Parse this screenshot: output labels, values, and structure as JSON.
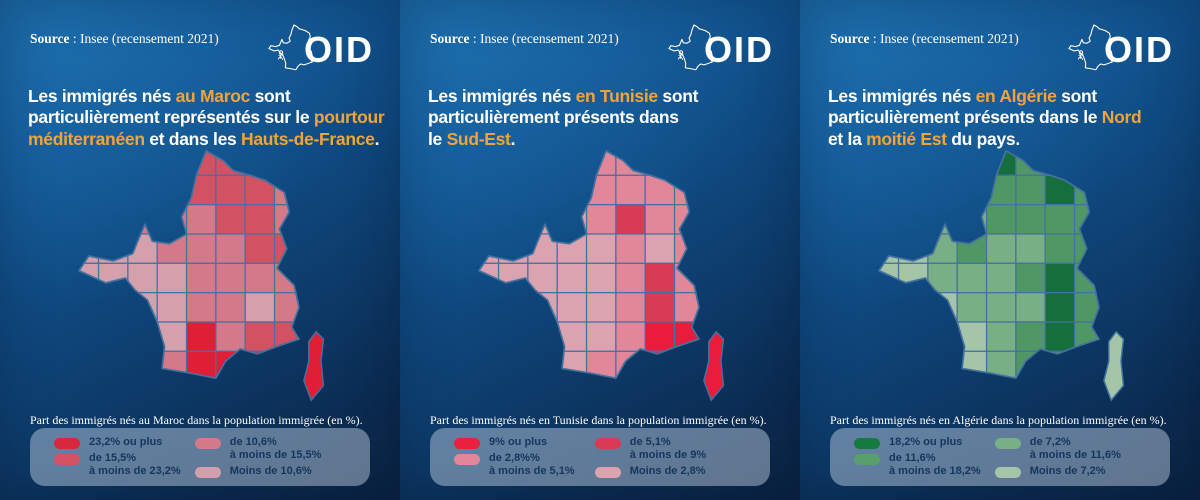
{
  "brand": {
    "logo_text": "OID"
  },
  "panels": [
    {
      "source": {
        "label": "Source",
        "rest": " : Insee (recensement 2021)"
      },
      "title_segments": [
        {
          "text": "Les immigrés nés ",
          "highlight": false
        },
        {
          "text": "au Maroc",
          "highlight": true
        },
        {
          "text": " sont",
          "highlight": false
        },
        {
          "br": true
        },
        {
          "text": "particulièrement représentés sur le ",
          "highlight": false
        },
        {
          "text": "pourtour méditerranéen",
          "highlight": true
        },
        {
          "text": " et dans les ",
          "highlight": false
        },
        {
          "text": "Hauts-de-France",
          "highlight": true
        },
        {
          "text": ".",
          "highlight": false
        }
      ],
      "caption": "Part des immigrés nés au Maroc dans la population immigrée (en %).",
      "legend": {
        "left": [
          {
            "lines": [
              "23,2% ou plus"
            ],
            "color": "#d8283c"
          },
          {
            "lines": [
              "de 15,5%",
              "à moins de 23,2%"
            ],
            "color": "#d25163"
          }
        ],
        "right": [
          {
            "lines": [
              "de 10,6%",
              "à moins de 15,5%"
            ],
            "color": "#d4798a"
          },
          {
            "lines": [
              "Moins de 10,6%"
            ],
            "color": "#d2a0ac"
          }
        ]
      },
      "map": {
        "palette": {
          "1": "#e01f36",
          "2": "#d25163",
          "3": "#d4798a",
          "4": "#d4a0ac"
        },
        "corsica_class": "1",
        "cells": [
          "4444224444",
          "4443222344",
          "4433322334",
          "4443332234",
          "4444333334",
          "4444334334",
          "4444132244",
          "4443111244",
          "4444444444"
        ]
      }
    },
    {
      "source": {
        "label": "Source",
        "rest": " : Insee (recensement 2021)"
      },
      "title_segments": [
        {
          "text": "Les immigrés nés ",
          "highlight": false
        },
        {
          "text": "en Tunisie",
          "highlight": true
        },
        {
          "text": " sont",
          "highlight": false
        },
        {
          "br": true
        },
        {
          "text": "particulièrement présents dans",
          "highlight": false
        },
        {
          "br": true
        },
        {
          "text": "le ",
          "highlight": false
        },
        {
          "text": "Sud-Est",
          "highlight": true
        },
        {
          "text": ".",
          "highlight": false
        }
      ],
      "caption": "Part des immigrés nés en Tunisie dans la population immigrée (en %).",
      "legend": {
        "left": [
          {
            "lines": [
              "9% ou plus"
            ],
            "color": "#e8213e"
          },
          {
            "lines": [
              "de 2,8%%",
              "à moins de 5,1%"
            ],
            "color": "#e18799"
          }
        ],
        "right": [
          {
            "lines": [
              "de 5,1%",
              "à moins de 9%"
            ],
            "color": "#d93a54"
          },
          {
            "lines": [
              "Moins de 2,8%"
            ],
            "color": "#dba2b0"
          }
        ]
      },
      "map": {
        "palette": {
          "1": "#ea1c3d",
          "2": "#d93a54",
          "3": "#e18799",
          "4": "#dba2b0"
        },
        "corsica_class": "1",
        "cells": [
          "4444334444",
          "4444333344",
          "4444323344",
          "4444434344",
          "4444432344",
          "4444432344",
          "4444431144",
          "4444331144",
          "4444444444"
        ]
      }
    },
    {
      "source": {
        "label": "Source",
        "rest": " : Insee (recensement 2021)"
      },
      "title_segments": [
        {
          "text": "Les immigrés nés ",
          "highlight": false
        },
        {
          "text": "en Algérie",
          "highlight": true
        },
        {
          "text": " sont",
          "highlight": false
        },
        {
          "br": true
        },
        {
          "text": "particulièrement présents dans le ",
          "highlight": false
        },
        {
          "text": "Nord",
          "highlight": true
        },
        {
          "br": true
        },
        {
          "text": "et la ",
          "highlight": false
        },
        {
          "text": "moitié Est",
          "highlight": true
        },
        {
          "text": " du pays.",
          "highlight": false
        }
      ],
      "caption": "Part des immigrés nés en Algérie dans la population immigrée (en %).",
      "legend": {
        "left": [
          {
            "lines": [
              "18,2% ou plus"
            ],
            "color": "#157a40"
          },
          {
            "lines": [
              "de 11,6%",
              "à moins de 18,2%"
            ],
            "color": "#57a06c"
          }
        ],
        "right": [
          {
            "lines": [
              "de 7,2%",
              "à moins de 11,6%"
            ],
            "color": "#79af85"
          },
          {
            "lines": [
              "Moins de 7,2%"
            ],
            "color": "#a4c5a7"
          }
        ]
      },
      "map": {
        "palette": {
          "1": "#156f3d",
          "2": "#4f9765",
          "3": "#79af85",
          "4": "#a4c5a7"
        },
        "corsica_class": "4",
        "cells": [
          "4443124444",
          "4441221244",
          "4433222244",
          "4432332244",
          "4433321244",
          "4443331244",
          "4444321244",
          "4444322344",
          "4444444444"
        ]
      }
    }
  ]
}
